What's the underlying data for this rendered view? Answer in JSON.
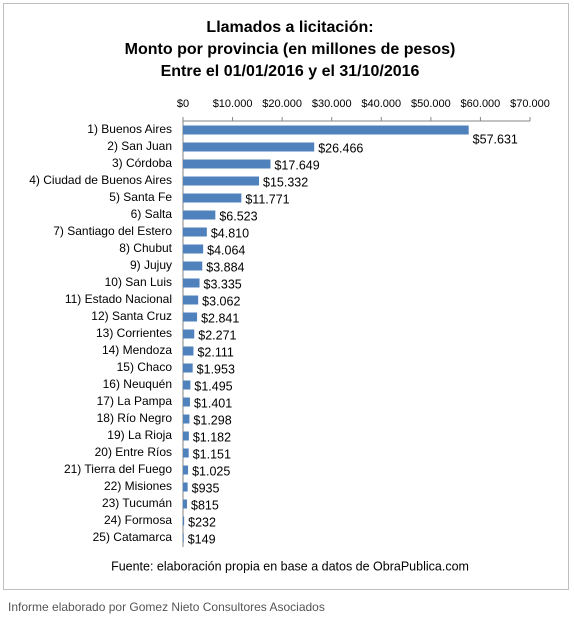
{
  "chart_data": {
    "type": "bar",
    "orientation": "horizontal",
    "title": [
      "Llamados a licitación:",
      "Monto por provincia (en millones de pesos)",
      "Entre el 01/01/2016 y el 31/10/2016"
    ],
    "categories": [
      "1) Buenos Aires",
      "2) San Juan",
      "3) Córdoba",
      "4) Ciudad de Buenos Aires",
      "5) Santa Fe",
      "6) Salta",
      "7) Santiago del Estero",
      "8) Chubut",
      "9) Jujuy",
      "10) San Luis",
      "11) Estado Nacional",
      "12) Santa Cruz",
      "13) Corrientes",
      "14) Mendoza",
      "15) Chaco",
      "16) Neuquén",
      "17) La Pampa",
      "18) Río Negro",
      "19) La Rioja",
      "20) Entre Ríos",
      "21) Tierra del Fuego",
      "22) Misiones",
      "23) Tucumán",
      "24) Formosa",
      "25) Catamarca"
    ],
    "values": [
      57631,
      26466,
      17649,
      15332,
      11771,
      6523,
      4810,
      4064,
      3884,
      3335,
      3062,
      2841,
      2271,
      2111,
      1953,
      1495,
      1401,
      1298,
      1182,
      1151,
      1025,
      935,
      815,
      232,
      149
    ],
    "value_labels": [
      "$57.631",
      "$26.466",
      "$17.649",
      "$15.332",
      "$11.771",
      "$6.523",
      "$4.810",
      "$4.064",
      "$3.884",
      "$3.335",
      "$3.062",
      "$2.841",
      "$2.271",
      "$2.111",
      "$1.953",
      "$1.495",
      "$1.401",
      "$1.298",
      "$1.182",
      "$1.151",
      "$1.025",
      "$935",
      "$815",
      "$232",
      "$149"
    ],
    "color": "#4f81bd",
    "xlim": [
      0,
      70000
    ],
    "xticks": [
      {
        "value": 0,
        "label": "$0"
      },
      {
        "value": 10000,
        "label": "$10.000"
      },
      {
        "value": 20000,
        "label": "$20.000"
      },
      {
        "value": 30000,
        "label": "$30.000"
      },
      {
        "value": 40000,
        "label": "$40.000"
      },
      {
        "value": 50000,
        "label": "$50.000"
      },
      {
        "value": 60000,
        "label": "$60.000"
      },
      {
        "value": 70000,
        "label": "$70.000"
      }
    ],
    "source": "Fuente: elaboración propia en base a datos de ObraPublica.com"
  },
  "caption": "Informe elaborado por Gomez Nieto Consultores Asociados"
}
